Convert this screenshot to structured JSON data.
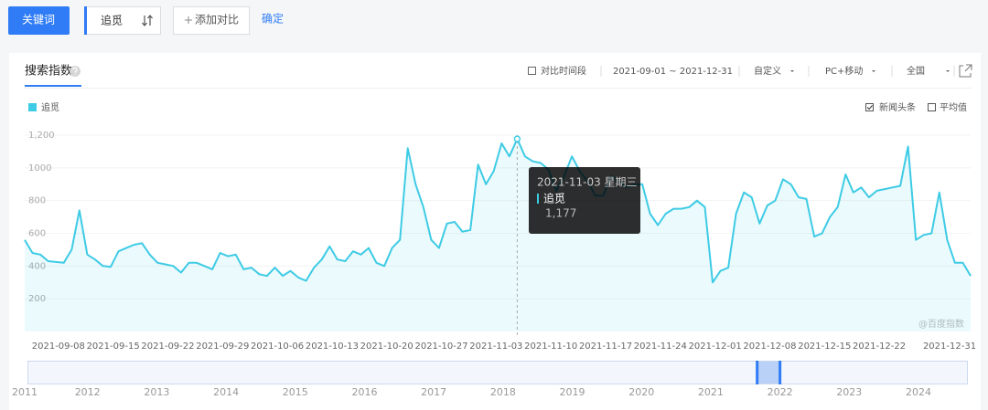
{
  "toolbar": {
    "keyword_button": "关键词",
    "keyword": "追觅",
    "add_compare": "添加对比",
    "confirm": "确定"
  },
  "panel": {
    "tab": "搜索指数",
    "compare_period": "对比时间段",
    "date_range": "2021-09-01 ~ 2021-12-31",
    "custom": "自定义",
    "device": "PC+移动",
    "region": "全国",
    "news": "新闻头条",
    "average": "平均值",
    "watermark": "@百度指数"
  },
  "chart_data": {
    "type": "area",
    "x": [
      "2021-09-01",
      "2021-09-02",
      "2021-09-03",
      "2021-09-04",
      "2021-09-05",
      "2021-09-06",
      "2021-09-07",
      "2021-09-08",
      "2021-09-09",
      "2021-09-10",
      "2021-09-11",
      "2021-09-12",
      "2021-09-13",
      "2021-09-14",
      "2021-09-15",
      "2021-09-16",
      "2021-09-17",
      "2021-09-18",
      "2021-09-19",
      "2021-09-20",
      "2021-09-21",
      "2021-09-22",
      "2021-09-23",
      "2021-09-24",
      "2021-09-25",
      "2021-09-26",
      "2021-09-27",
      "2021-09-28",
      "2021-09-29",
      "2021-09-30",
      "2021-10-01",
      "2021-10-02",
      "2021-10-03",
      "2021-10-04",
      "2021-10-05",
      "2021-10-06",
      "2021-10-07",
      "2021-10-08",
      "2021-10-09",
      "2021-10-10",
      "2021-10-11",
      "2021-10-12",
      "2021-10-13",
      "2021-10-14",
      "2021-10-15",
      "2021-10-16",
      "2021-10-17",
      "2021-10-18",
      "2021-10-19",
      "2021-10-20",
      "2021-10-21",
      "2021-10-22",
      "2021-10-23",
      "2021-10-24",
      "2021-10-25",
      "2021-10-26",
      "2021-10-27",
      "2021-10-28",
      "2021-10-29",
      "2021-10-30",
      "2021-10-31",
      "2021-11-01",
      "2021-11-02",
      "2021-11-03",
      "2021-11-04",
      "2021-11-05",
      "2021-11-06",
      "2021-11-07",
      "2021-11-08",
      "2021-11-09",
      "2021-11-10",
      "2021-11-11",
      "2021-11-12",
      "2021-11-13",
      "2021-11-14",
      "2021-11-15",
      "2021-11-16",
      "2021-11-17",
      "2021-11-18",
      "2021-11-19",
      "2021-11-20",
      "2021-11-21",
      "2021-11-22",
      "2021-11-23",
      "2021-11-24",
      "2021-11-25",
      "2021-11-26",
      "2021-11-27",
      "2021-11-28",
      "2021-11-29",
      "2021-11-30",
      "2021-12-01",
      "2021-12-02",
      "2021-12-03",
      "2021-12-04",
      "2021-12-05",
      "2021-12-06",
      "2021-12-07",
      "2021-12-08",
      "2021-12-09",
      "2021-12-10",
      "2021-12-11",
      "2021-12-12",
      "2021-12-13",
      "2021-12-14",
      "2021-12-15",
      "2021-12-16",
      "2021-12-17",
      "2021-12-18",
      "2021-12-19",
      "2021-12-20",
      "2021-12-21",
      "2021-12-22",
      "2021-12-23",
      "2021-12-24",
      "2021-12-25",
      "2021-12-26",
      "2021-12-27",
      "2021-12-28",
      "2021-12-29",
      "2021-12-30",
      "2021-12-31"
    ],
    "series": [
      {
        "name": "追觅",
        "color": "#3ecbe5",
        "values": [
          560,
          480,
          470,
          430,
          425,
          420,
          500,
          740,
          470,
          440,
          400,
          395,
          490,
          510,
          530,
          540,
          470,
          420,
          410,
          400,
          360,
          420,
          420,
          400,
          380,
          480,
          460,
          470,
          380,
          390,
          350,
          340,
          390,
          340,
          370,
          330,
          310,
          390,
          440,
          520,
          440,
          430,
          490,
          470,
          510,
          420,
          400,
          510,
          560,
          1120,
          900,
          760,
          560,
          510,
          660,
          670,
          610,
          620,
          1020,
          900,
          980,
          1150,
          1070,
          1177,
          1070,
          1040,
          1030,
          990,
          860,
          950,
          1070,
          980,
          920,
          830,
          830,
          950,
          920,
          880,
          900,
          900,
          720,
          650,
          720,
          750,
          750,
          760,
          800,
          760,
          300,
          370,
          390,
          720,
          850,
          820,
          660,
          770,
          800,
          930,
          900,
          820,
          810,
          580,
          600,
          700,
          760,
          960,
          850,
          880,
          820,
          860,
          870,
          880,
          890,
          1130,
          560,
          590,
          600,
          850,
          560,
          420,
          420,
          340
        ]
      }
    ],
    "xlim": [
      "2021-09-01",
      "2021-12-31"
    ],
    "xticks": [
      "2021-09-08",
      "2021-09-15",
      "2021-09-22",
      "2021-09-29",
      "2021-10-06",
      "2021-10-13",
      "2021-10-20",
      "2021-10-27",
      "2021-11-03",
      "2021-11-10",
      "2021-11-17",
      "2021-11-24",
      "2021-12-01",
      "2021-12-08",
      "2021-12-15",
      "2021-12-22",
      "2021-12-31"
    ],
    "ylim": [
      0,
      1200
    ],
    "yticks": [
      200,
      400,
      600,
      800,
      1000,
      {
        "value": 1200,
        "label": "1,200"
      }
    ],
    "grid": true,
    "tooltip": {
      "x": "2021-11-03",
      "title": "2021-11-03 星期三",
      "value": 1177,
      "value_label": "1,177"
    },
    "navigator": {
      "xlim": [
        2011,
        2024.7
      ],
      "xticks": [
        2011,
        2012,
        2013,
        2014,
        2015,
        2016,
        2017,
        2018,
        2019,
        2020,
        2021,
        2022,
        2023,
        2024
      ],
      "selection": [
        2021.67,
        2022.0
      ]
    }
  }
}
